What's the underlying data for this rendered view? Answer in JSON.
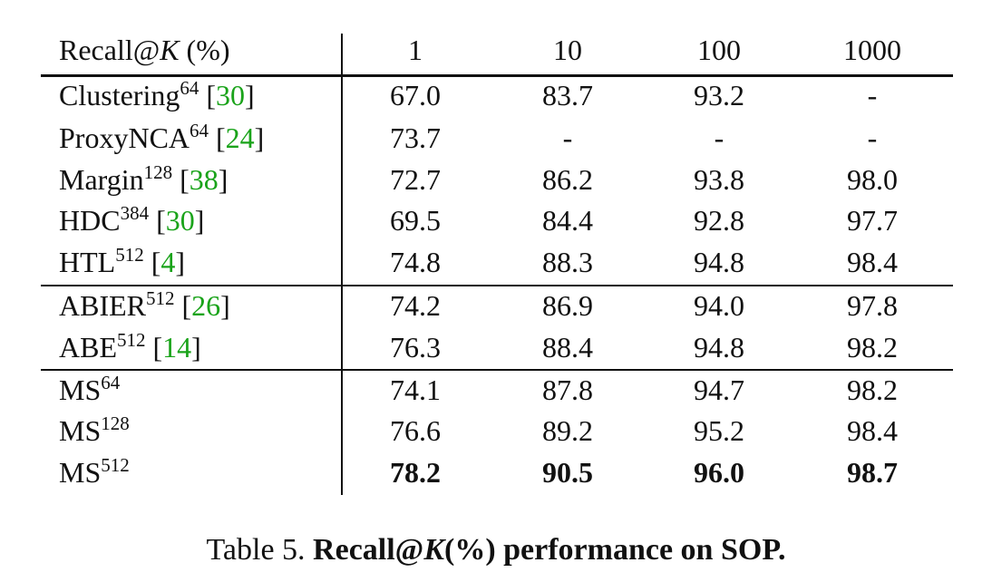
{
  "header": {
    "label_prefix": "Recall@",
    "label_var": "K",
    "label_suffix": " (%)",
    "columns": [
      "1",
      "10",
      "100",
      "1000"
    ]
  },
  "groups": [
    [
      {
        "name": "Clustering",
        "sup": "64",
        "cite": [
          "[",
          "30",
          "]"
        ],
        "values": [
          "67.0",
          "83.7",
          "93.2",
          "-"
        ]
      },
      {
        "name": "ProxyNCA",
        "sup": "64",
        "cite": [
          "[",
          "24",
          "]"
        ],
        "values": [
          "73.7",
          "-",
          "-",
          "-"
        ]
      },
      {
        "name": "Margin",
        "sup": "128",
        "cite": [
          "[",
          "38",
          "]"
        ],
        "values": [
          "72.7",
          "86.2",
          "93.8",
          "98.0"
        ]
      },
      {
        "name": "HDC",
        "sup": "384",
        "cite": [
          "[",
          "30",
          "]"
        ],
        "values": [
          "69.5",
          "84.4",
          "92.8",
          "97.7"
        ]
      },
      {
        "name": "HTL",
        "sup": "512",
        "cite": [
          "[",
          "4",
          "]"
        ],
        "values": [
          "74.8",
          "88.3",
          "94.8",
          "98.4"
        ]
      }
    ],
    [
      {
        "name": "ABIER",
        "sup": "512",
        "cite": [
          "[",
          "26",
          "]"
        ],
        "values": [
          "74.2",
          "86.9",
          "94.0",
          "97.8"
        ]
      },
      {
        "name": "ABE",
        "sup": "512",
        "cite": [
          "[",
          "14",
          "]"
        ],
        "values": [
          "76.3",
          "88.4",
          "94.8",
          "98.2"
        ]
      }
    ],
    [
      {
        "name": "MS",
        "sup": "64",
        "values": [
          "74.1",
          "87.8",
          "94.7",
          "98.2"
        ]
      },
      {
        "name": "MS",
        "sup": "128",
        "values": [
          "76.6",
          "89.2",
          "95.2",
          "98.4"
        ]
      },
      {
        "name": "MS",
        "sup": "512",
        "bold": true,
        "values": [
          "78.2",
          "90.5",
          "96.0",
          "98.7"
        ]
      }
    ]
  ],
  "caption": {
    "number": "Table 5.",
    "title_prefix": "Recall@",
    "title_var": "K",
    "title_suffix": "(%) performance on SOP."
  }
}
